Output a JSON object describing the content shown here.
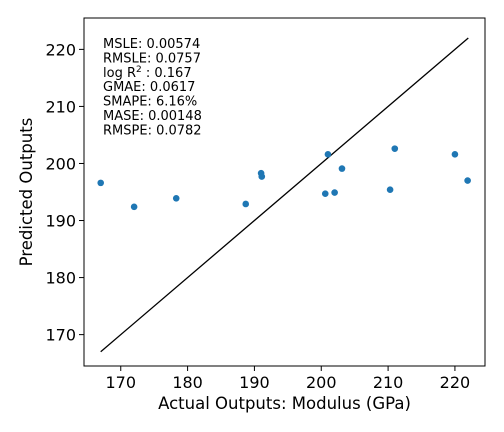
{
  "chart_data": {
    "type": "scatter",
    "xlabel": "Actual Outputs: Modulus (GPa)",
    "ylabel": "Predicted Outputs",
    "xlim": [
      164.5,
      224.5
    ],
    "ylim": [
      164.5,
      225.5
    ],
    "x_ticks": [
      170,
      180,
      190,
      200,
      210,
      220
    ],
    "y_ticks": [
      170,
      180,
      190,
      200,
      210,
      220
    ],
    "grid": false,
    "point_color": "#1f77b4",
    "line_color": "#000000",
    "points": [
      {
        "x": 167.0,
        "y": 196.6
      },
      {
        "x": 172.0,
        "y": 192.4
      },
      {
        "x": 178.3,
        "y": 193.9
      },
      {
        "x": 188.7,
        "y": 192.9
      },
      {
        "x": 191.0,
        "y": 198.3
      },
      {
        "x": 191.1,
        "y": 197.7
      },
      {
        "x": 200.6,
        "y": 194.7
      },
      {
        "x": 201.0,
        "y": 201.6
      },
      {
        "x": 202.0,
        "y": 194.9
      },
      {
        "x": 203.1,
        "y": 199.1
      },
      {
        "x": 210.3,
        "y": 195.4
      },
      {
        "x": 211.0,
        "y": 202.6
      },
      {
        "x": 220.0,
        "y": 201.6
      },
      {
        "x": 221.9,
        "y": 197.0
      }
    ],
    "reference_line": [
      {
        "x": 167.0,
        "y": 167.0
      },
      {
        "x": 222.0,
        "y": 222.0
      }
    ],
    "annotations": [
      {
        "label": "MSLE",
        "value": "0.00574"
      },
      {
        "label": "RMSLE",
        "value": "0.0757"
      },
      {
        "label": "log R",
        "sup": "2",
        "value": "0.167"
      },
      {
        "label": "GMAE",
        "value": "0.0617"
      },
      {
        "label": "SMAPE",
        "value": "6.16%"
      },
      {
        "label": "MASE",
        "value": "0.00148"
      },
      {
        "label": "RMSPE",
        "value": "0.0782"
      }
    ]
  }
}
